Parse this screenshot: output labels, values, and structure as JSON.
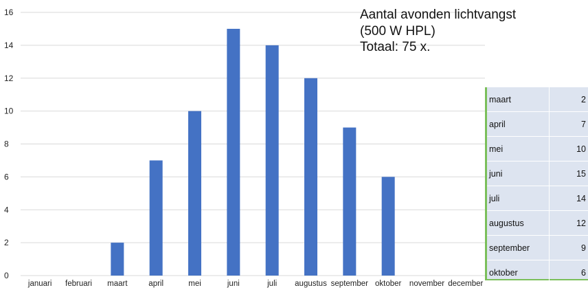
{
  "title_lines": [
    "Aantal avonden lichtvangst",
    "(500 W HPL)",
    "Totaal: 75 x."
  ],
  "chart_data": {
    "type": "bar",
    "categories": [
      "januari",
      "februari",
      "maart",
      "april",
      "mei",
      "juni",
      "juli",
      "augustus",
      "september",
      "oktober",
      "november",
      "december"
    ],
    "values": [
      0,
      0,
      2,
      7,
      10,
      15,
      14,
      12,
      9,
      6,
      0,
      0
    ],
    "ylim": [
      0,
      16
    ],
    "yticks": [
      0,
      2,
      4,
      6,
      8,
      10,
      12,
      14,
      16
    ],
    "grid": true,
    "bar_color": "#4472c4"
  },
  "table": {
    "rows": [
      {
        "month": "maart",
        "value": "2"
      },
      {
        "month": "april",
        "value": "7"
      },
      {
        "month": "mei",
        "value": "10"
      },
      {
        "month": "juni",
        "value": "15"
      },
      {
        "month": "juli",
        "value": "14"
      },
      {
        "month": "augustus",
        "value": "12"
      },
      {
        "month": "september",
        "value": "9"
      },
      {
        "month": "oktober",
        "value": "6"
      }
    ]
  }
}
